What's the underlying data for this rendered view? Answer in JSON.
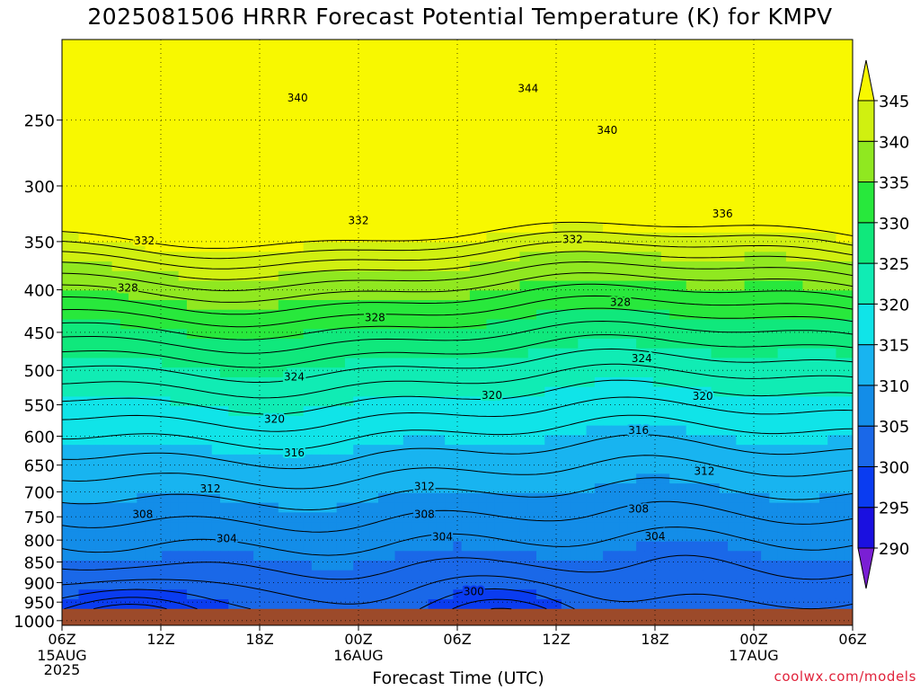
{
  "title": "2025081506 HRRR Forecast Potential Temperature (K) for KMPV",
  "credit": "coolwx.com/models",
  "colors": {
    "ground": "#9c4a2a",
    "contour_line": "#000000",
    "label_color": "#e0223a"
  },
  "colorbar": {
    "levels": [
      290,
      295,
      300,
      305,
      310,
      315,
      320,
      325,
      330,
      335,
      340,
      345
    ],
    "labels": [
      "290",
      "295",
      "300",
      "305",
      "310",
      "315",
      "320",
      "325",
      "330",
      "335",
      "340",
      "345"
    ],
    "colors": [
      "#7a1fd4",
      "#1a10e0",
      "#0a3cf0",
      "#1a68e8",
      "#138de8",
      "#18b4f0",
      "#10e4e8",
      "#10ecb4",
      "#10e87c",
      "#28e83c",
      "#90e820",
      "#d0f010",
      "#f8f800"
    ]
  },
  "chart_data": {
    "type": "heatmap",
    "title": "2025081506 HRRR Forecast Potential Temperature (K) for KMPV",
    "xlabel": "Forecast Time (UTC)",
    "ylabel": "",
    "x_ticks": [
      {
        "hour": 0,
        "label": "06Z",
        "sub": [
          "15AUG",
          "2025"
        ]
      },
      {
        "hour": 6,
        "label": "12Z",
        "sub": []
      },
      {
        "hour": 12,
        "label": "18Z",
        "sub": []
      },
      {
        "hour": 18,
        "label": "00Z",
        "sub": [
          "16AUG"
        ]
      },
      {
        "hour": 24,
        "label": "06Z",
        "sub": []
      },
      {
        "hour": 30,
        "label": "12Z",
        "sub": []
      },
      {
        "hour": 36,
        "label": "18Z",
        "sub": []
      },
      {
        "hour": 42,
        "label": "00Z",
        "sub": [
          "17AUG"
        ]
      },
      {
        "hour": 48,
        "label": "06Z",
        "sub": []
      }
    ],
    "xlim": [
      0,
      48
    ],
    "y_ticks": [
      250,
      300,
      350,
      400,
      450,
      500,
      550,
      600,
      650,
      700,
      750,
      800,
      850,
      900,
      950,
      1000
    ],
    "ylim": [
      200,
      1013
    ],
    "y_scale": "log (pressure, hPa)",
    "surface_pressure_hPa": 968,
    "grid": true,
    "contour_interval_K": 2,
    "contour_labels": [
      {
        "value": 344,
        "hour": 28.3,
        "p": 229
      },
      {
        "value": 340,
        "hour": 14.3,
        "p": 235
      },
      {
        "value": 340,
        "hour": 33.1,
        "p": 257
      },
      {
        "value": 336,
        "hour": 40.1,
        "p": 324
      },
      {
        "value": 332,
        "hour": 5.0,
        "p": 349
      },
      {
        "value": 332,
        "hour": 18.0,
        "p": 330
      },
      {
        "value": 332,
        "hour": 31.0,
        "p": 348
      },
      {
        "value": 328,
        "hour": 4.0,
        "p": 398
      },
      {
        "value": 328,
        "hour": 19.0,
        "p": 432
      },
      {
        "value": 328,
        "hour": 33.9,
        "p": 414
      },
      {
        "value": 324,
        "hour": 14.1,
        "p": 509
      },
      {
        "value": 324,
        "hour": 35.2,
        "p": 484
      },
      {
        "value": 320,
        "hour": 12.9,
        "p": 572
      },
      {
        "value": 320,
        "hour": 26.1,
        "p": 536
      },
      {
        "value": 320,
        "hour": 38.9,
        "p": 537
      },
      {
        "value": 316,
        "hour": 14.1,
        "p": 628
      },
      {
        "value": 316,
        "hour": 35.0,
        "p": 590
      },
      {
        "value": 312,
        "hour": 9.0,
        "p": 694
      },
      {
        "value": 312,
        "hour": 22.0,
        "p": 690
      },
      {
        "value": 312,
        "hour": 39.0,
        "p": 661
      },
      {
        "value": 308,
        "hour": 4.9,
        "p": 745
      },
      {
        "value": 308,
        "hour": 22.0,
        "p": 745
      },
      {
        "value": 308,
        "hour": 35.0,
        "p": 734
      },
      {
        "value": 304,
        "hour": 10.0,
        "p": 797
      },
      {
        "value": 304,
        "hour": 23.1,
        "p": 793
      },
      {
        "value": 304,
        "hour": 36.0,
        "p": 792
      },
      {
        "value": 300,
        "hour": 25.0,
        "p": 923
      }
    ]
  }
}
